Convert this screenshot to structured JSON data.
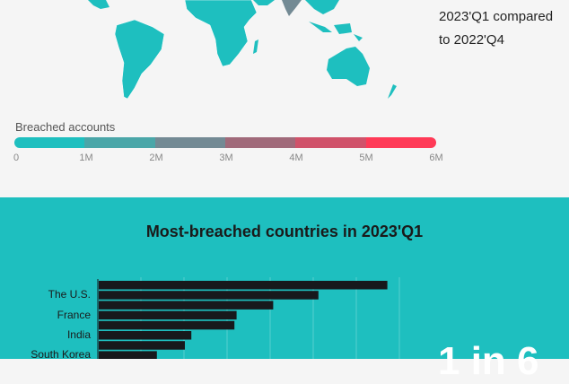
{
  "map_note": {
    "line1": "2023'Q1 compared",
    "line2": "to 2022'Q4"
  },
  "legend": {
    "title": "Breached accounts",
    "ticks": [
      "0",
      "1M",
      "2M",
      "3M",
      "4M",
      "5M",
      "6M"
    ],
    "colors": [
      "#1ebfbf",
      "#4aa6a8",
      "#738a94",
      "#a06a7a",
      "#d0526a",
      "#ff3a57"
    ]
  },
  "chart_data": {
    "type": "bar",
    "orientation": "horizontal",
    "title": "Most-breached countries in 2023'Q1",
    "categories": [
      "",
      "The U.S.",
      "",
      "France",
      "",
      "India",
      "",
      "South Korea"
    ],
    "values": [
      6.7,
      5.1,
      4.05,
      3.2,
      3.15,
      2.15,
      2.0,
      1.35
    ],
    "xlim": [
      0,
      7
    ],
    "grid": true,
    "bar_color": "#17191c"
  },
  "callout": "1 in 6"
}
